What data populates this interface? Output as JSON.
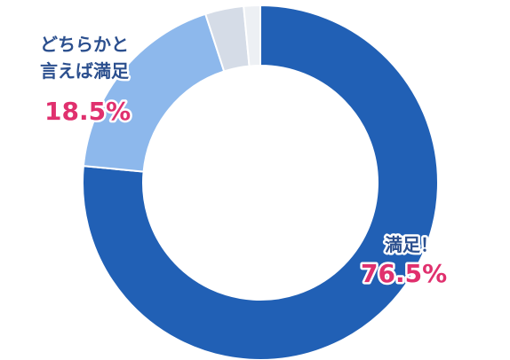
{
  "chart_data": {
    "type": "pie",
    "variant": "donut",
    "slices": [
      {
        "label": "満足！",
        "value": 76.5,
        "value_label": "76.5%",
        "color": "#2160b5"
      },
      {
        "label_lines": [
          "どちらかと",
          "言えば満足"
        ],
        "value": 18.5,
        "value_label": "18.5%",
        "color": "#8db8ec"
      },
      {
        "value": 3.5,
        "color": "#d5dce7"
      },
      {
        "value": 1.5,
        "color": "#edf0f4"
      }
    ],
    "start": "top",
    "direction": "clockwise",
    "legend": "none",
    "label_color": "#2b4f8e",
    "value_label_color": "#e0306e"
  }
}
